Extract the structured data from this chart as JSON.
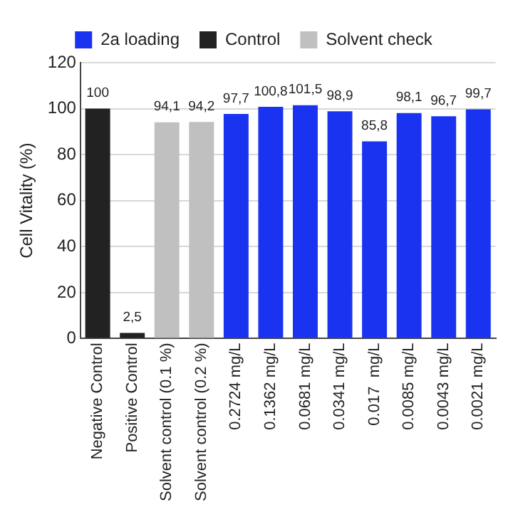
{
  "chart_data": {
    "type": "bar",
    "ylabel": "Cell Vitality (%)",
    "categories": [
      "Negative Control",
      "Positive Control",
      "Solvent control (0.1 %)",
      "Solvent control (0.2 %)",
      "0.2724 mg/L",
      "0.1362 mg/L",
      "0.0681 mg/L",
      "0.0341 mg/L",
      "0.017  mg/L",
      "0.0085 mg/L",
      "0.0043 mg/L",
      "0.0021 mg/L"
    ],
    "series": [
      {
        "name": "2a loading",
        "color": "#1a33f0",
        "values": [
          null,
          null,
          null,
          null,
          97.7,
          100.8,
          101.5,
          98.9,
          85.8,
          98.1,
          96.7,
          99.7
        ],
        "value_labels": [
          null,
          null,
          null,
          null,
          "97,7",
          "100,8",
          "101,5",
          "98,9",
          "85,8",
          "98,1",
          "96,7",
          "99,7"
        ]
      },
      {
        "name": "Control",
        "color": "#222222",
        "values": [
          100,
          2.5,
          null,
          null,
          null,
          null,
          null,
          null,
          null,
          null,
          null,
          null
        ],
        "value_labels": [
          "100",
          "2,5",
          null,
          null,
          null,
          null,
          null,
          null,
          null,
          null,
          null,
          null
        ]
      },
      {
        "name": "Solvent check",
        "color": "#c0c0c0",
        "values": [
          null,
          null,
          94.1,
          94.2,
          null,
          null,
          null,
          null,
          null,
          null,
          null,
          null
        ],
        "value_labels": [
          null,
          null,
          "94,1",
          "94,2",
          null,
          null,
          null,
          null,
          null,
          null,
          null,
          null
        ]
      }
    ],
    "ylim": [
      0,
      120
    ],
    "yticks": [
      0,
      20,
      40,
      60,
      80,
      100,
      120
    ],
    "grid": "y",
    "legend": "top"
  }
}
